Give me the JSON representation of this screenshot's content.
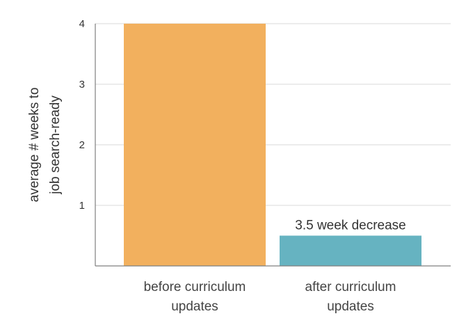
{
  "chart_data": {
    "type": "bar",
    "categories": [
      [
        "before curriculum",
        "updates"
      ],
      [
        "after curriculum",
        "updates"
      ]
    ],
    "values": [
      4,
      0.5
    ],
    "colors": [
      "#f2b05e",
      "#66b3c1"
    ],
    "ylabel": [
      "average # weeks to",
      "job search-ready"
    ],
    "ylim": [
      0,
      4
    ],
    "yticks": [
      1,
      2,
      3,
      4
    ],
    "grid": true,
    "annotations": [
      {
        "category_index": 1,
        "text": "3.5 week decrease"
      }
    ]
  }
}
